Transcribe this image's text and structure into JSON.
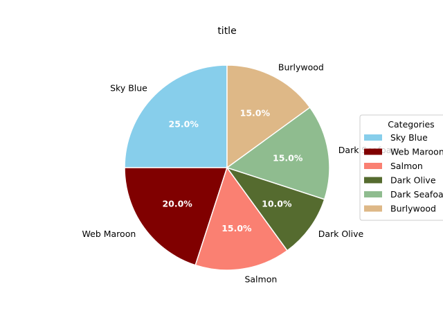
{
  "chart_data": {
    "type": "pie",
    "title": "title",
    "categories": [
      "Sky Blue",
      "Web Maroon",
      "Salmon",
      "Dark Olive",
      "Dark Seafoam",
      "Burlywood"
    ],
    "values": [
      25.0,
      20.0,
      15.0,
      10.0,
      15.0,
      15.0
    ],
    "colors": [
      "#87ceeb",
      "#800000",
      "#fa8072",
      "#556b2f",
      "#8fbc8f",
      "#deb887"
    ],
    "value_format": "percent_1dp",
    "start_angle_deg": 90,
    "direction": "counterclockwise",
    "legend": {
      "title": "Categories",
      "placement": "right",
      "entries": [
        "Sky Blue",
        "Web Maroon",
        "Salmon",
        "Dark Olive",
        "Dark Seafoam",
        "Burlywood"
      ]
    }
  }
}
